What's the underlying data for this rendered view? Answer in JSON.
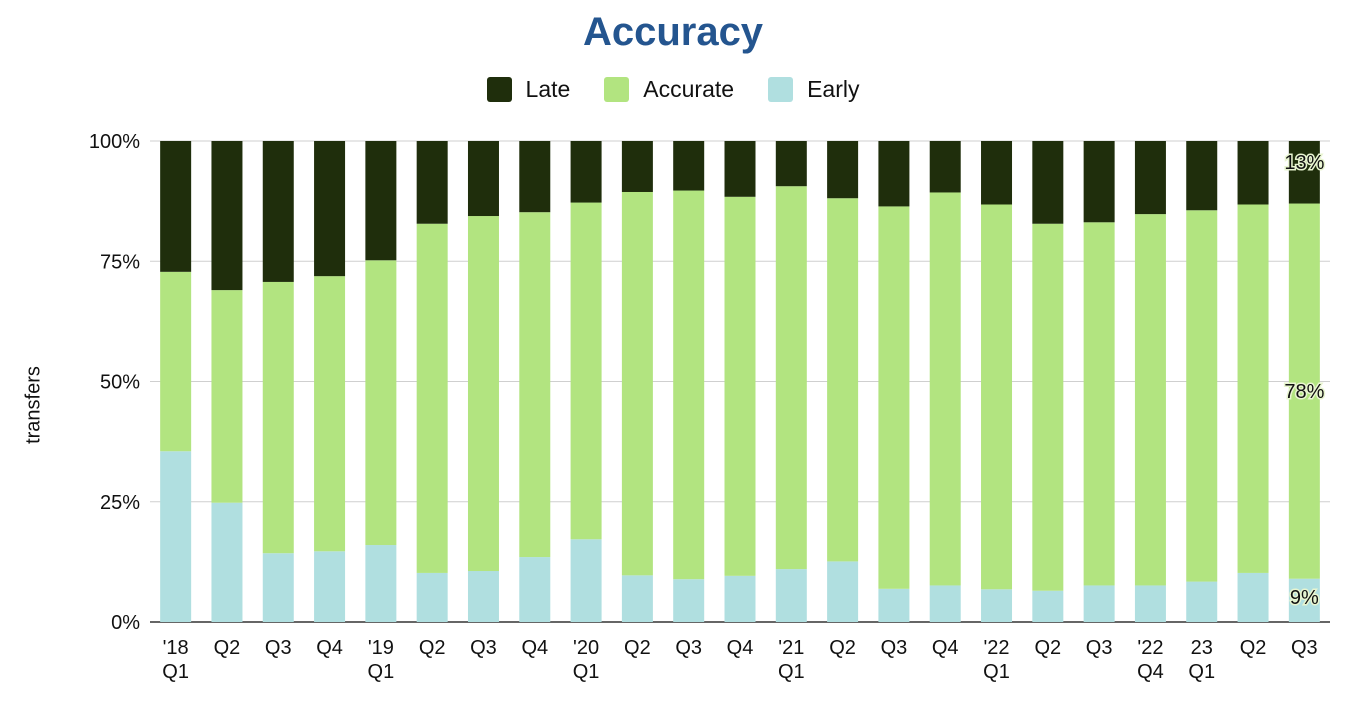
{
  "chart_data": {
    "type": "bar",
    "stacked": true,
    "title": "Accuracy",
    "ylabel": "transfers",
    "ylim": [
      0,
      100
    ],
    "yticks": [
      "0%",
      "25%",
      "50%",
      "75%",
      "100%"
    ],
    "grid": true,
    "legend_position": "top",
    "categories": [
      [
        "'18",
        "Q1"
      ],
      [
        "Q2"
      ],
      [
        "Q3"
      ],
      [
        "Q4"
      ],
      [
        "'19",
        "Q1"
      ],
      [
        "Q2"
      ],
      [
        "Q3"
      ],
      [
        "Q4"
      ],
      [
        "'20",
        "Q1"
      ],
      [
        "Q2"
      ],
      [
        "Q3"
      ],
      [
        "Q4"
      ],
      [
        "'21",
        "Q1"
      ],
      [
        "Q2"
      ],
      [
        "Q3"
      ],
      [
        "Q4"
      ],
      [
        "'22",
        "Q1"
      ],
      [
        "Q2"
      ],
      [
        "Q3"
      ],
      [
        "'22",
        "Q4"
      ],
      [
        "23",
        "Q1"
      ],
      [
        "Q2"
      ],
      [
        "Q3"
      ]
    ],
    "series": [
      {
        "name": "Early",
        "color": "#b0dfe0",
        "values": [
          35.5,
          24.8,
          14.3,
          14.7,
          16.0,
          10.2,
          10.6,
          13.5,
          17.2,
          9.7,
          8.9,
          9.6,
          11.0,
          12.6,
          6.9,
          7.6,
          6.8,
          6.5,
          7.6,
          7.6,
          8.4,
          10.2,
          9
        ]
      },
      {
        "name": "Accurate",
        "color": "#b2e480",
        "values": [
          37.3,
          44.2,
          56.4,
          57.2,
          59.2,
          72.6,
          73.8,
          71.7,
          70.0,
          79.7,
          80.8,
          78.8,
          79.6,
          75.5,
          79.5,
          81.7,
          80.0,
          76.3,
          75.5,
          77.2,
          77.2,
          76.6,
          78
        ]
      },
      {
        "name": "Late",
        "color": "#1f2e0c",
        "values": [
          27.2,
          31.0,
          29.3,
          28.1,
          24.8,
          17.2,
          15.6,
          14.8,
          12.8,
          10.6,
          10.3,
          11.6,
          9.4,
          11.9,
          13.6,
          10.7,
          13.2,
          17.2,
          16.9,
          15.2,
          14.4,
          13.2,
          13
        ]
      }
    ],
    "legend_order": [
      "Late",
      "Accurate",
      "Early"
    ],
    "data_labels": [
      {
        "category_index": 22,
        "series": "Late",
        "text": "13%"
      },
      {
        "category_index": 22,
        "series": "Accurate",
        "text": "78%"
      },
      {
        "category_index": 22,
        "series": "Early",
        "text": "9%"
      }
    ]
  }
}
